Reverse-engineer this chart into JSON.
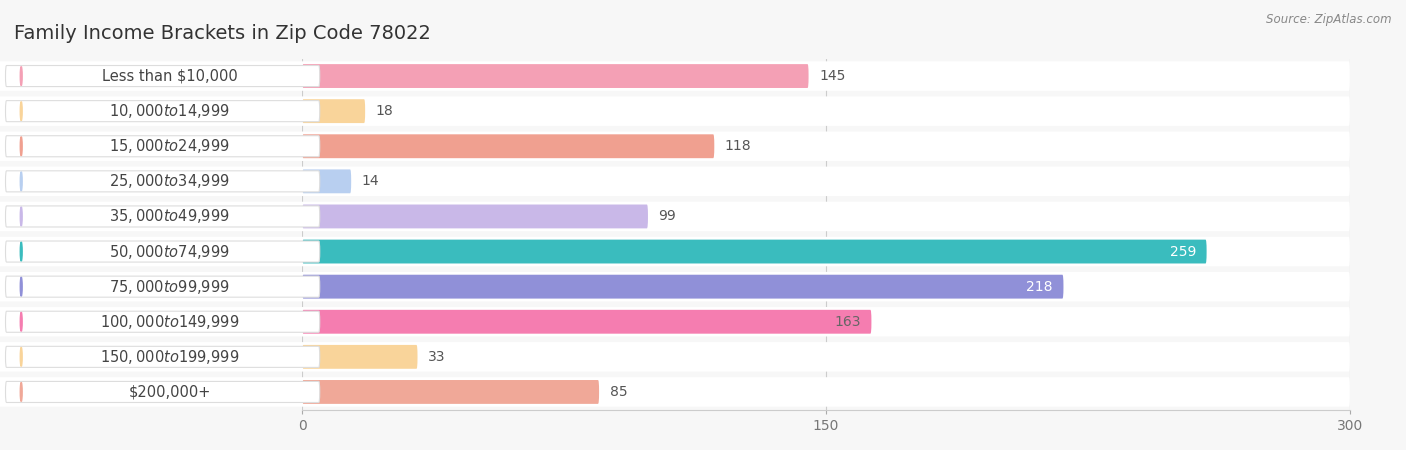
{
  "title": "Family Income Brackets in Zip Code 78022",
  "source": "Source: ZipAtlas.com",
  "categories": [
    "Less than $10,000",
    "$10,000 to $14,999",
    "$15,000 to $24,999",
    "$25,000 to $34,999",
    "$35,000 to $49,999",
    "$50,000 to $74,999",
    "$75,000 to $99,999",
    "$100,000 to $149,999",
    "$150,000 to $199,999",
    "$200,000+"
  ],
  "values": [
    145,
    18,
    118,
    14,
    99,
    259,
    218,
    163,
    33,
    85
  ],
  "bar_colors": [
    "#f4a0b5",
    "#f9d49a",
    "#f0a090",
    "#b8cff0",
    "#c9b8e8",
    "#3abcbe",
    "#9090d8",
    "#f57db0",
    "#f9d49a",
    "#f0a898"
  ],
  "value_inside_color": [
    "#666666",
    "#666666",
    "#666666",
    "#666666",
    "#666666",
    "#ffffff",
    "#ffffff",
    "#666666",
    "#666666",
    "#666666"
  ],
  "xlim": [
    0,
    300
  ],
  "xticks": [
    0,
    150,
    300
  ],
  "background_color": "#f7f7f7",
  "row_bg_color": "#ffffff",
  "title_fontsize": 14,
  "label_fontsize": 10.5,
  "value_fontsize": 10
}
